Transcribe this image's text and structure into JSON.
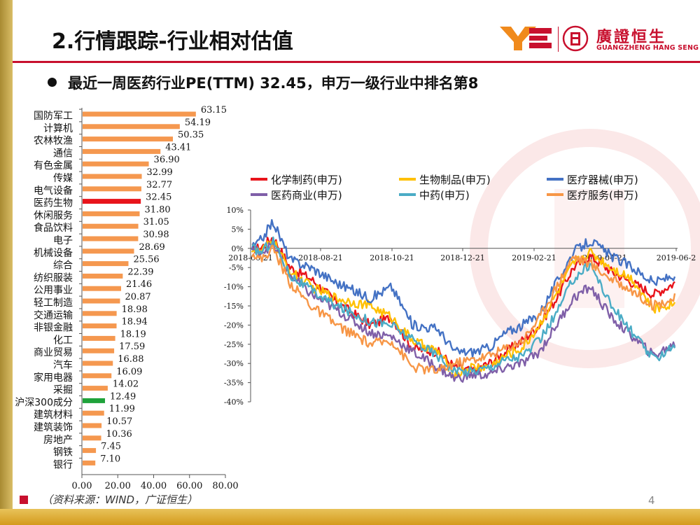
{
  "slide": {
    "title": "2.行情跟踪-行业相对估值",
    "bullet": "最近一周医药行业PE(TTM) 32.45，申万一级行业中排名第8",
    "source": "（资料来源：WIND，广证恒生）",
    "page_number": "4"
  },
  "logo": {
    "cn": "廣證恒生",
    "en": "GUANGZHENG HANG SENG",
    "brand_red": "#c8102e",
    "brand_orange": "#f08a1c"
  },
  "chart_data": [
    {
      "type": "bar",
      "orientation": "horizontal",
      "categories": [
        "国防军工",
        "计算机",
        "农林牧渔",
        "通信",
        "有色金属",
        "传媒",
        "电气设备",
        "医药生物",
        "休闲服务",
        "食品饮料",
        "电子",
        "机械设备",
        "综合",
        "纺织服装",
        "公用事业",
        "轻工制造",
        "交通运输",
        "非银金融",
        "化工",
        "商业贸易",
        "汽车",
        "家用电器",
        "采掘",
        "沪深300成分",
        "建筑材料",
        "建筑装饰",
        "房地产",
        "钢铁",
        "银行"
      ],
      "values": [
        63.15,
        54.19,
        50.35,
        43.41,
        36.9,
        32.99,
        32.77,
        32.45,
        31.8,
        31.05,
        30.98,
        28.69,
        25.56,
        22.39,
        21.46,
        20.87,
        18.98,
        18.94,
        18.19,
        17.59,
        16.88,
        16.09,
        14.02,
        12.49,
        11.99,
        10.57,
        10.36,
        7.45,
        7.1
      ],
      "value_labels": [
        "63.15",
        "54.19",
        "50.35",
        "43.41",
        "36.90",
        "32.99",
        "32.77",
        "32.45",
        "31.80",
        "31.05",
        "30.98",
        "28.69",
        "25.56",
        "22.39",
        "21.46",
        "20.87",
        "18.98",
        "18.94",
        "18.19",
        "17.59",
        "16.88",
        "16.09",
        "14.02",
        "12.49",
        "11.99",
        "10.57",
        "10.36",
        "7.45",
        "7.10"
      ],
      "highlight": {
        "医药生物": "#e8141b",
        "沪深300成分": "#1fa23a"
      },
      "default_color": "#f5984f",
      "xlim": [
        0,
        80
      ],
      "x_ticks": [
        "0.00",
        "20.00",
        "40.00",
        "60.00",
        "80.00"
      ]
    },
    {
      "type": "line",
      "x_tick_labels": [
        "2018-06-21",
        "2018-08-21",
        "2018-10-21",
        "2018-12-21",
        "2019-02-21",
        "2019-04-21",
        "2019-06-2"
      ],
      "y_tick_labels": [
        "10%",
        "5%",
        "0%",
        "-5%",
        "-10%",
        "-15%",
        "-20%",
        "-25%",
        "-30%",
        "-35%",
        "-40%"
      ],
      "ylim": [
        -40,
        10
      ],
      "legend": [
        "化学制药(申万)",
        "生物制品(申万)",
        "医疗器械(申万)",
        "医药商业(申万)",
        "中药(申万)",
        "医疗服务(申万)"
      ],
      "colors": [
        "#e8141b",
        "#ffc000",
        "#4472c4",
        "#7f5fa8",
        "#4bacc6",
        "#f79646"
      ],
      "keypoints_x": [
        0,
        2,
        5,
        9,
        14,
        20,
        28,
        33,
        38,
        44,
        48,
        52,
        56,
        60,
        64,
        68,
        72,
        76,
        80,
        85,
        90,
        95,
        100
      ],
      "series": [
        {
          "name": "化学制药(申万)",
          "values": [
            0,
            0,
            3,
            -5,
            -8,
            -14,
            -20,
            -18,
            -26,
            -27,
            -31,
            -32,
            -30,
            -27,
            -24,
            -20,
            -13,
            -5,
            -2,
            -6,
            -9,
            -12,
            -9
          ]
        },
        {
          "name": "生物制品(申万)",
          "values": [
            0,
            -1,
            2,
            -6,
            -10,
            -13,
            -15,
            -18,
            -24,
            -27,
            -33,
            -31,
            -31,
            -28,
            -26,
            -20,
            -12,
            -4,
            -1,
            -5,
            -8,
            -16,
            -14
          ]
        },
        {
          "name": "医疗器械(申万)",
          "values": [
            0,
            2,
            7,
            -3,
            -5,
            -9,
            -13,
            -10,
            -20,
            -21,
            -27,
            -27,
            -26,
            -22,
            -20,
            -17,
            -9,
            -1,
            2,
            -2,
            -5,
            -9,
            -7
          ]
        },
        {
          "name": "医药商业(申万)",
          "values": [
            0,
            -1,
            1,
            -7,
            -12,
            -16,
            -22,
            -23,
            -27,
            -31,
            -34,
            -33,
            -33,
            -31,
            -30,
            -27,
            -20,
            -13,
            -10,
            -18,
            -23,
            -28,
            -25
          ]
        },
        {
          "name": "中药(申万)",
          "values": [
            0,
            -1,
            2,
            -7,
            -11,
            -15,
            -19,
            -20,
            -24,
            -28,
            -32,
            -32,
            -31,
            -29,
            -28,
            -24,
            -17,
            -8,
            -4,
            -15,
            -22,
            -29,
            -25
          ]
        },
        {
          "name": "医疗服务(申万)",
          "values": [
            -1,
            -3,
            0,
            -9,
            -15,
            -20,
            -25,
            -24,
            -31,
            -32,
            -30,
            -29,
            -28,
            -26,
            -24,
            -18,
            -10,
            -2,
            -4,
            -8,
            -11,
            -15,
            -13
          ]
        }
      ]
    }
  ]
}
